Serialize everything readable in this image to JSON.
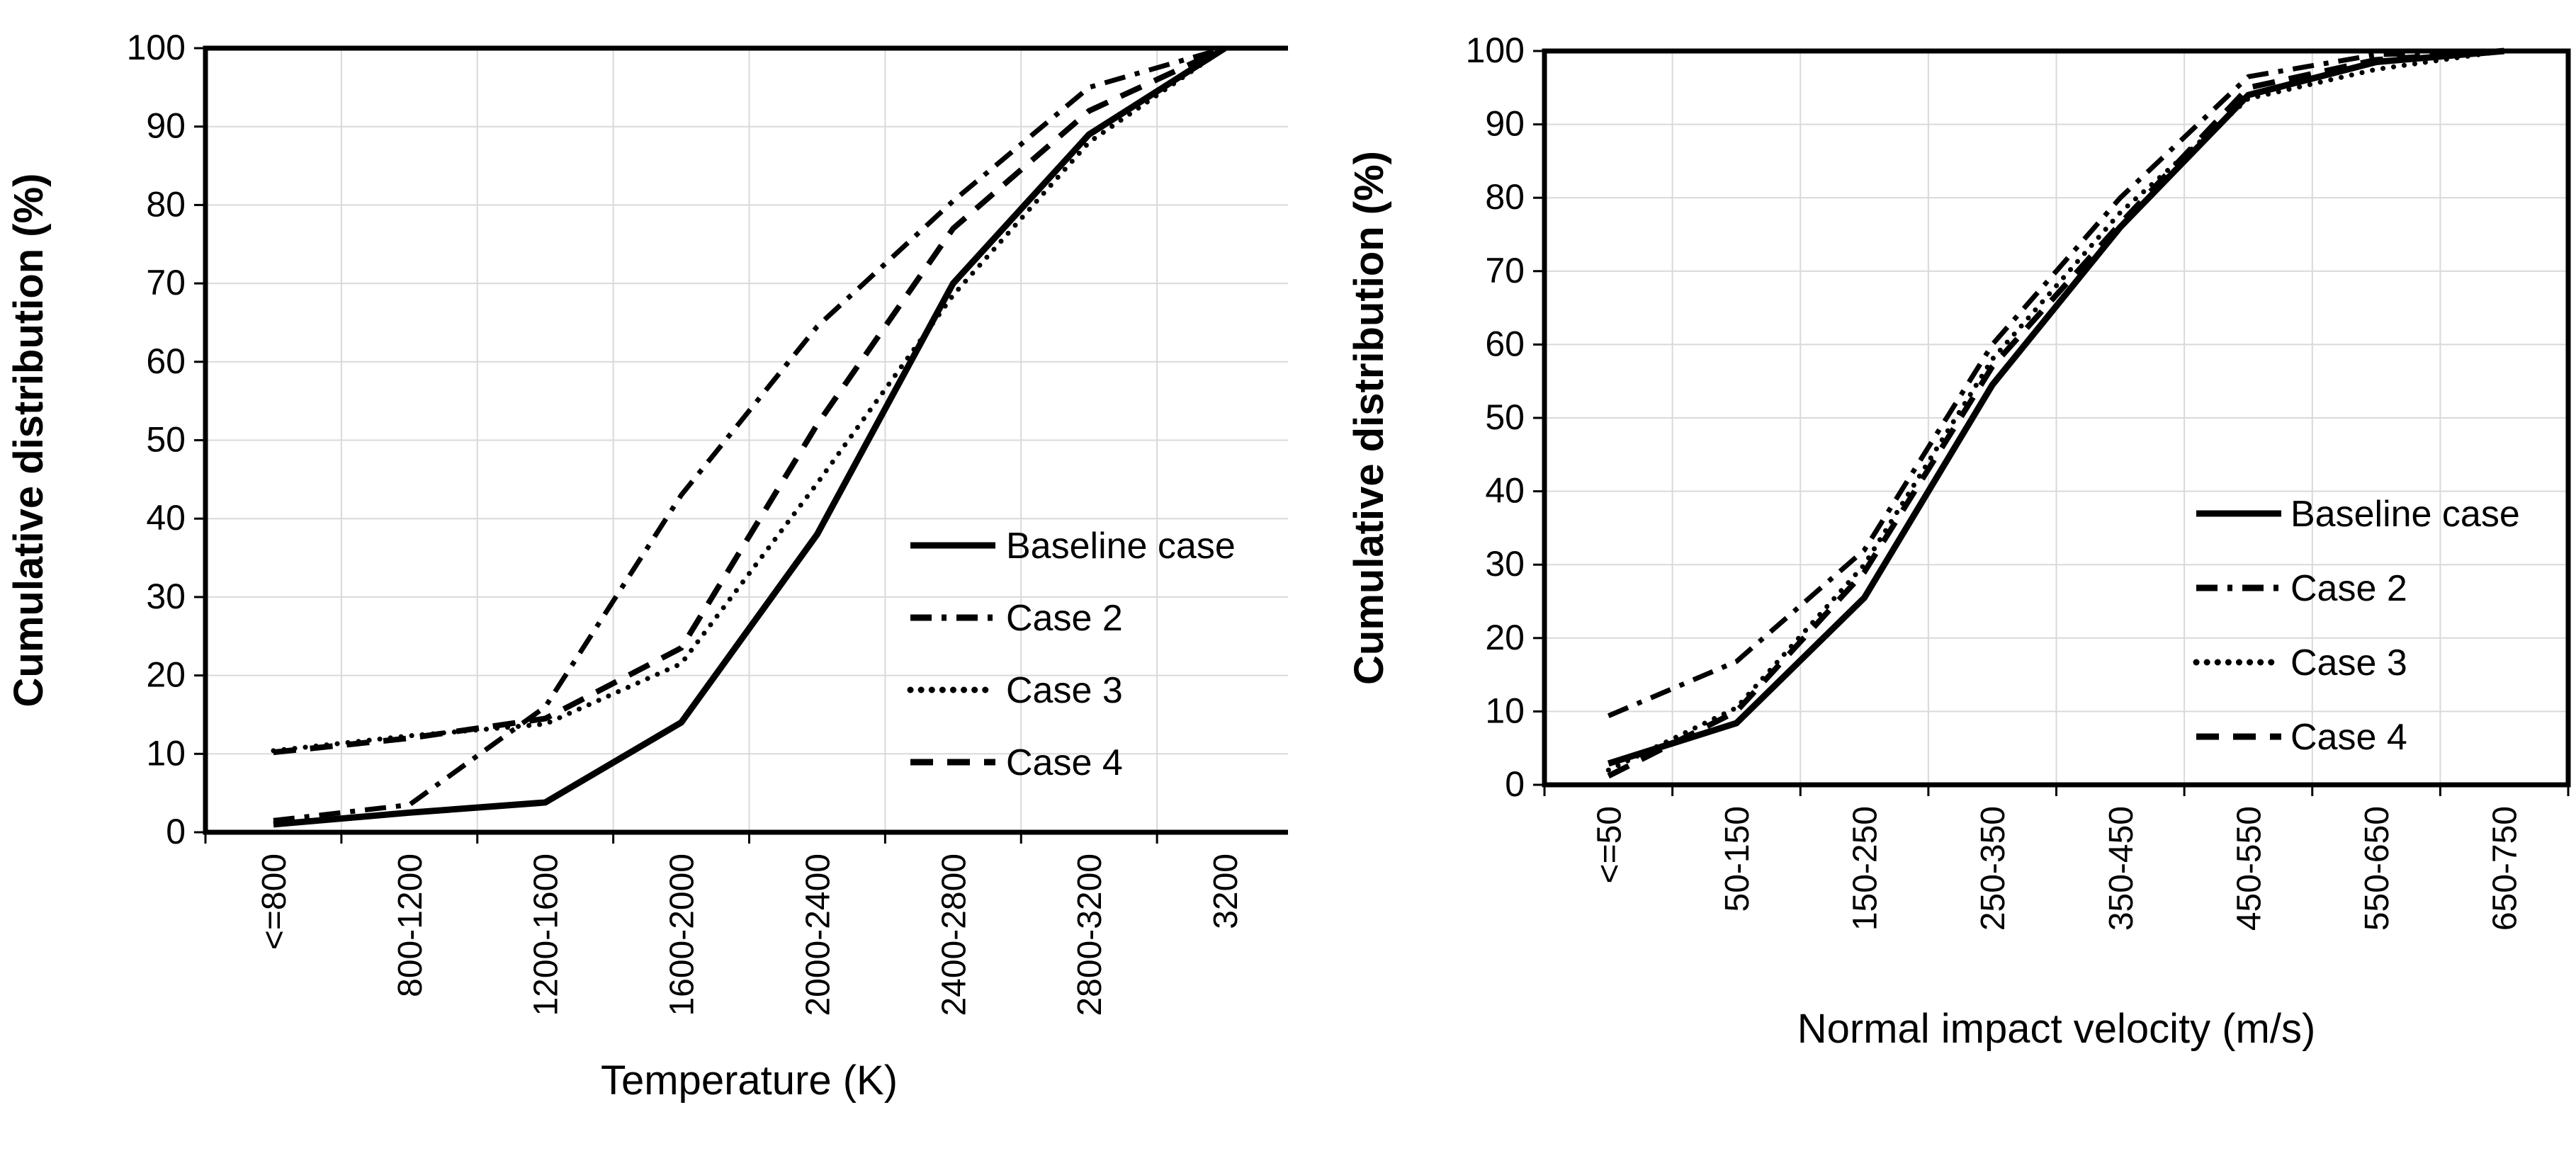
{
  "page": {
    "background": "#ffffff",
    "text_color": "#000000",
    "grid_color": "#d9d9d9",
    "line_color": "#000000"
  },
  "chart_data": [
    {
      "id": "temperature-cdf",
      "type": "line",
      "title": "",
      "xlabel": "Temperature (K)",
      "ylabel": "Cumulative distribution (%)",
      "categories": [
        "<=800",
        "800-1200",
        "1200-1600",
        "1600-2000",
        "2000-2400",
        "2400-2800",
        "2800-3200",
        "3200"
      ],
      "ylim": [
        0,
        100
      ],
      "ytick_step": 10,
      "grid": true,
      "legend_position": "inside-right",
      "series": [
        {
          "name": "Baseline case",
          "style": "solid",
          "values": [
            1,
            2.5,
            3.8,
            14,
            38,
            70,
            89,
            100
          ]
        },
        {
          "name": "Case 2",
          "style": "dash-dot",
          "values": [
            1.5,
            3.5,
            16,
            43,
            64.5,
            80.5,
            95,
            100
          ]
        },
        {
          "name": "Case 3",
          "style": "dotted",
          "values": [
            10.4,
            12.3,
            13.8,
            21.5,
            44.5,
            68.5,
            88,
            100
          ]
        },
        {
          "name": "Case 4",
          "style": "dashed",
          "values": [
            10.2,
            12,
            14.5,
            23.5,
            52,
            77,
            92,
            100
          ]
        }
      ]
    },
    {
      "id": "velocity-cdf",
      "type": "line",
      "title": "",
      "xlabel": "Normal impact velocity (m/s)",
      "ylabel": "Cumulative distribution (%)",
      "categories": [
        "<=50",
        "50-150",
        "150-250",
        "250-350",
        "350-450",
        "450-550",
        "550-650",
        "650-750"
      ],
      "ylim": [
        0,
        100
      ],
      "ytick_step": 10,
      "grid": true,
      "legend_position": "inside-right",
      "series": [
        {
          "name": "Baseline case",
          "style": "solid",
          "values": [
            2.9,
            8.4,
            25.5,
            54.5,
            76,
            94,
            98.5,
            100
          ]
        },
        {
          "name": "Case 2",
          "style": "dash-dot",
          "values": [
            9.4,
            16.8,
            32,
            60,
            80,
            96.5,
            99.5,
            100
          ]
        },
        {
          "name": "Case 3",
          "style": "dotted",
          "values": [
            2,
            10.5,
            30,
            58,
            78,
            93.5,
            97.5,
            100
          ]
        },
        {
          "name": "Case 4",
          "style": "dashed",
          "values": [
            1.2,
            10,
            29,
            57,
            76.5,
            95,
            98.8,
            100
          ]
        }
      ]
    }
  ]
}
